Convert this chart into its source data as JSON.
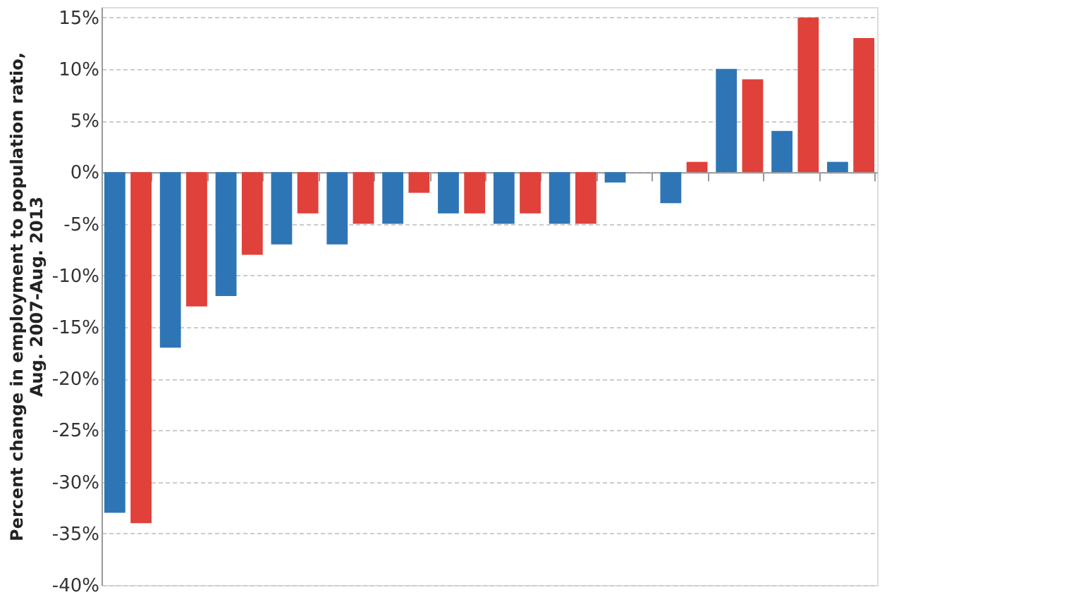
{
  "chart_data": {
    "type": "bar",
    "ylabel": "Percent change in employment to population ratio,\nAug. 2007-Aug. 2013",
    "categories": [
      null,
      null,
      null,
      null,
      null,
      null,
      null,
      null,
      null,
      null,
      null,
      null,
      null,
      null
    ],
    "series": [
      {
        "color": "#2e75b6",
        "values": [
          -33,
          -17,
          -12,
          -7,
          -7,
          -5,
          -4,
          -5,
          -5,
          -1,
          -3,
          10,
          4,
          1
        ]
      },
      {
        "color": "#e0413a",
        "values": [
          -34,
          -13,
          -8,
          -4,
          -5,
          -2,
          -4,
          -4,
          -5,
          0,
          1,
          9,
          15,
          13
        ]
      }
    ],
    "ylim": [
      -40,
      16
    ],
    "yticks": [
      {
        "value": -40,
        "label": "-40%"
      },
      {
        "value": -35,
        "label": "-35%"
      },
      {
        "value": -30,
        "label": "-30%"
      },
      {
        "value": -25,
        "label": "-25%"
      },
      {
        "value": -20,
        "label": "-20%"
      },
      {
        "value": -15,
        "label": "-15%"
      },
      {
        "value": -10,
        "label": "-10%"
      },
      {
        "value": -5,
        "label": "-5%"
      },
      {
        "value": 0,
        "label": "0%"
      },
      {
        "value": 5,
        "label": "5%"
      },
      {
        "value": 10,
        "label": "10%"
      },
      {
        "value": 15,
        "label": "15%"
      }
    ],
    "grid": "y",
    "tick_labels": "y"
  }
}
